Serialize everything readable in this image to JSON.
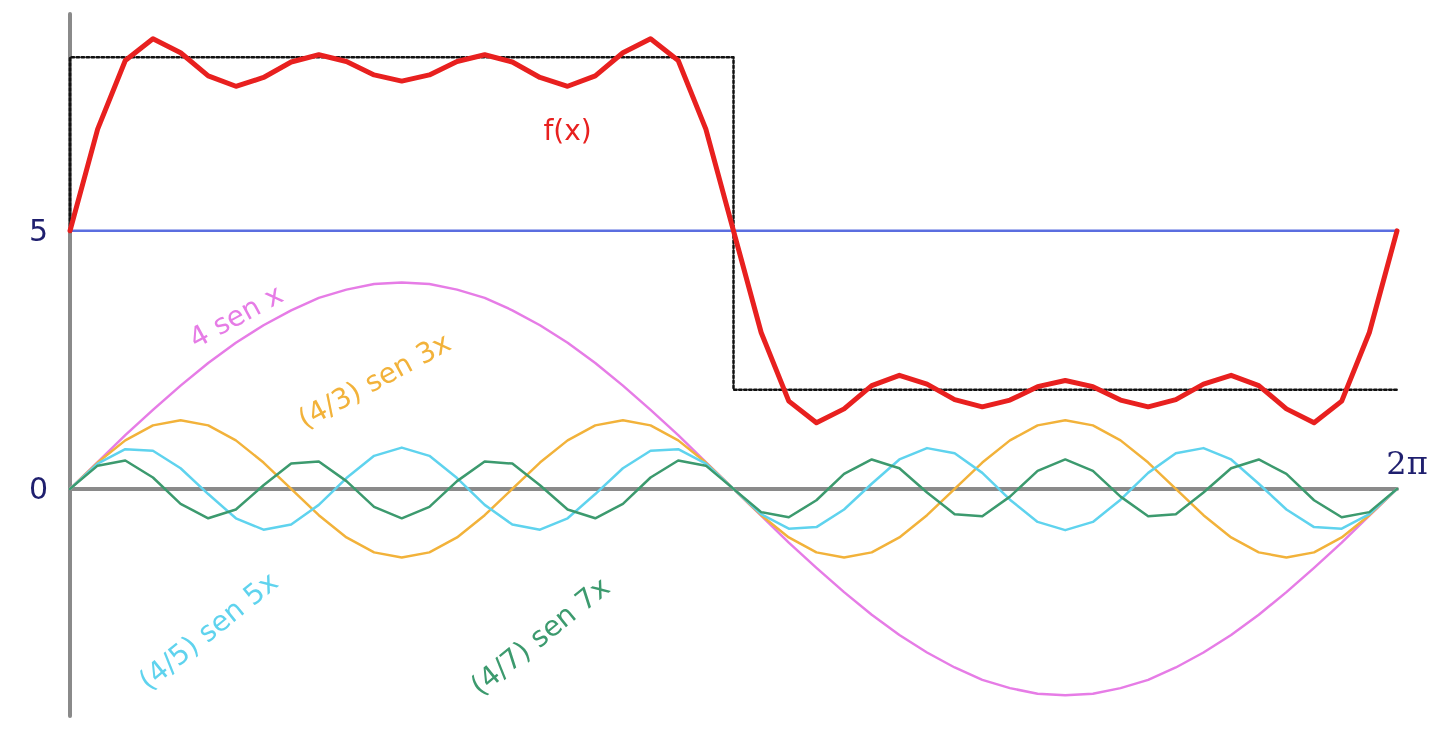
{
  "chart_data": {
    "type": "line",
    "categories": [
      null,
      null,
      null,
      null,
      null,
      null,
      null,
      null,
      null,
      null,
      null,
      null,
      null,
      null,
      null,
      null,
      null,
      null,
      null,
      null,
      null,
      null,
      null,
      null,
      null,
      null,
      null,
      null,
      null,
      null,
      null,
      null,
      null,
      null,
      null,
      null,
      null,
      null,
      null,
      null,
      null,
      null,
      null,
      null,
      null,
      null,
      null,
      null,
      null
    ],
    "series": [
      {
        "name": "f(x)",
        "color": "#e8201f",
        "values": [
          5,
          6.97,
          8.3,
          8.72,
          8.45,
          8,
          7.8,
          7.97,
          8.27,
          8.41,
          8.28,
          8.02,
          7.9,
          8.02,
          8.28,
          8.41,
          8.27,
          7.97,
          7.8,
          8,
          8.45,
          8.72,
          8.3,
          6.97,
          5,
          3.03,
          1.7,
          1.28,
          1.55,
          2,
          2.2,
          2.03,
          1.73,
          1.59,
          1.72,
          1.98,
          2.1,
          1.98,
          1.72,
          1.59,
          1.73,
          2.03,
          2.2,
          2,
          1.55,
          1.28,
          1.7,
          3.03,
          5
        ]
      },
      {
        "color": "#5b6ee0",
        "values": [
          5,
          5,
          5,
          5,
          5,
          5,
          5,
          5,
          5,
          5,
          5,
          5,
          5,
          5,
          5,
          5,
          5,
          5,
          5,
          5,
          5,
          5,
          5,
          5,
          5,
          5,
          5,
          5,
          5,
          5,
          5,
          5,
          5,
          5,
          5,
          5,
          5,
          5,
          5,
          5,
          5,
          5,
          5,
          5,
          5,
          5,
          5,
          5,
          5
        ]
      },
      {
        "type": "step",
        "color": "#111111",
        "line_style": "dotted",
        "values": [
          5,
          8.36,
          8.36,
          8.36,
          8.36,
          8.36,
          8.36,
          8.36,
          8.36,
          8.36,
          8.36,
          8.36,
          8.36,
          8.36,
          8.36,
          8.36,
          8.36,
          8.36,
          8.36,
          8.36,
          8.36,
          8.36,
          8.36,
          8.36,
          8.36,
          1.92,
          1.92,
          1.92,
          1.92,
          1.92,
          1.92,
          1.92,
          1.92,
          1.92,
          1.92,
          1.92,
          1.92,
          1.92,
          1.92,
          1.92,
          1.92,
          1.92,
          1.92,
          1.92,
          1.92,
          1.92,
          1.92,
          1.92,
          1.92
        ]
      },
      {
        "name": "4 sen x",
        "color": "#e67ce6",
        "values": [
          0,
          0.52,
          1.04,
          1.53,
          2,
          2.44,
          2.83,
          3.17,
          3.46,
          3.7,
          3.86,
          3.97,
          4,
          3.97,
          3.86,
          3.7,
          3.46,
          3.17,
          2.83,
          2.44,
          2,
          1.53,
          1.04,
          0.52,
          0,
          -0.52,
          -1.04,
          -1.53,
          -2,
          -2.44,
          -2.83,
          -3.17,
          -3.46,
          -3.7,
          -3.86,
          -3.97,
          -4,
          -3.97,
          -3.86,
          -3.7,
          -3.46,
          -3.17,
          -2.83,
          -2.44,
          -2,
          -1.53,
          -1.04,
          -0.52,
          0
        ]
      },
      {
        "name": "(4/3) sen 3x",
        "color": "#f2b23a",
        "values": [
          0,
          0.51,
          0.94,
          1.23,
          1.33,
          1.23,
          0.94,
          0.51,
          0,
          -0.51,
          -0.94,
          -1.23,
          -1.33,
          -1.23,
          -0.94,
          -0.51,
          0,
          0.51,
          0.94,
          1.23,
          1.33,
          1.23,
          0.94,
          0.51,
          0,
          -0.51,
          -0.94,
          -1.23,
          -1.33,
          -1.23,
          -0.94,
          -0.51,
          0,
          0.51,
          0.94,
          1.23,
          1.33,
          1.23,
          0.94,
          0.51,
          0,
          -0.51,
          -0.94,
          -1.23,
          -1.33,
          -1.23,
          -0.94,
          -0.51,
          0
        ]
      },
      {
        "name": "(4/5) sen 5x",
        "color": "#5fd3ee",
        "values": [
          0,
          0.49,
          0.77,
          0.74,
          0.4,
          -0.1,
          -0.57,
          -0.79,
          -0.69,
          -0.31,
          0.21,
          0.64,
          0.8,
          0.64,
          0.21,
          -0.31,
          -0.69,
          -0.79,
          -0.57,
          -0.1,
          0.4,
          0.74,
          0.77,
          0.49,
          0,
          -0.49,
          -0.77,
          -0.74,
          -0.4,
          0.1,
          0.57,
          0.79,
          0.69,
          0.31,
          -0.21,
          -0.64,
          -0.8,
          -0.64,
          -0.21,
          0.31,
          0.69,
          0.79,
          0.57,
          0.1,
          -0.4,
          -0.74,
          -0.77,
          -0.49,
          0
        ]
      },
      {
        "name": "(4/7) sen 7x",
        "color": "#3c9a6e",
        "values": [
          0,
          0.45,
          0.55,
          0.22,
          -0.29,
          -0.57,
          -0.4,
          0.07,
          0.49,
          0.53,
          0.15,
          -0.35,
          -0.57,
          -0.35,
          0.15,
          0.53,
          0.49,
          0.07,
          -0.4,
          -0.57,
          -0.29,
          0.22,
          0.55,
          0.45,
          0,
          -0.45,
          -0.55,
          -0.22,
          0.29,
          0.57,
          0.4,
          -0.07,
          -0.49,
          -0.53,
          -0.15,
          0.35,
          0.57,
          0.35,
          -0.15,
          -0.53,
          -0.49,
          -0.07,
          0.4,
          0.57,
          0.29,
          -0.22,
          -0.55,
          -0.45,
          0
        ]
      }
    ],
    "ylim": [
      -4.4,
      9.2
    ],
    "yticks": [
      0,
      5
    ],
    "annotations": [
      "2π"
    ],
    "marker": "none"
  }
}
